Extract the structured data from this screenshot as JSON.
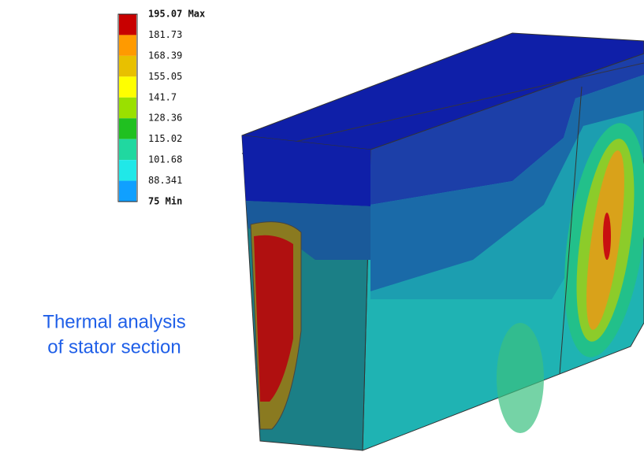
{
  "legend": {
    "labels": [
      "195.07 Max",
      "181.73",
      "168.39",
      "155.05",
      "141.7",
      "128.36",
      "115.02",
      "101.68",
      "88.341",
      "75 Min"
    ]
  },
  "caption": {
    "lines": [
      "Thermal analysis",
      "of stator section"
    ]
  }
}
